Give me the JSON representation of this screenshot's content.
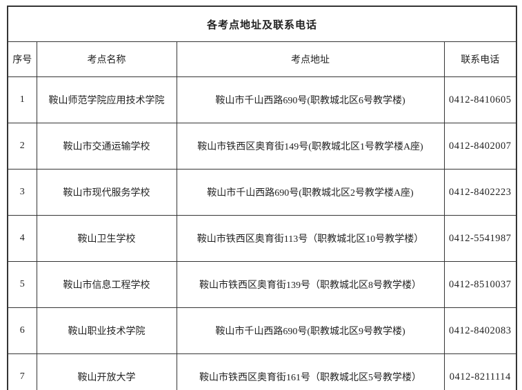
{
  "table": {
    "title": "各考点地址及联系电话",
    "headers": {
      "index": "序号",
      "name": "考点名称",
      "address": "考点地址",
      "phone": "联系电话"
    },
    "rows": [
      {
        "index": "1",
        "name": "鞍山师范学院应用技术学院",
        "address": "鞍山市千山西路690号(职教城北区6号教学楼)",
        "phone": "0412-8410605"
      },
      {
        "index": "2",
        "name": "鞍山市交通运输学校",
        "address": "鞍山市铁西区奥育街149号(职教城北区1号教学楼A座)",
        "phone": "0412-8402007"
      },
      {
        "index": "3",
        "name": "鞍山市现代服务学校",
        "address": "鞍山市千山西路690号(职教城北区2号教学楼A座)",
        "phone": "0412-8402223"
      },
      {
        "index": "4",
        "name": "鞍山卫生学校",
        "address": "鞍山市铁西区奥育街113号（职教城北区10号教学楼）",
        "phone": "0412-5541987"
      },
      {
        "index": "5",
        "name": "鞍山市信息工程学校",
        "address": "鞍山市铁西区奥育街139号（职教城北区8号教学楼）",
        "phone": "0412-8510037"
      },
      {
        "index": "6",
        "name": "鞍山职业技术学院",
        "address": "鞍山市千山西路690号(职教城北区9号教学楼)",
        "phone": "0412-8402083"
      },
      {
        "index": "7",
        "name": "鞍山开放大学",
        "address": "鞍山市铁西区奥育街161号（职教城北区5号教学楼）",
        "phone": "0412-8211114"
      }
    ],
    "colors": {
      "border": "#333333",
      "text": "#222222",
      "background": "#ffffff"
    }
  }
}
